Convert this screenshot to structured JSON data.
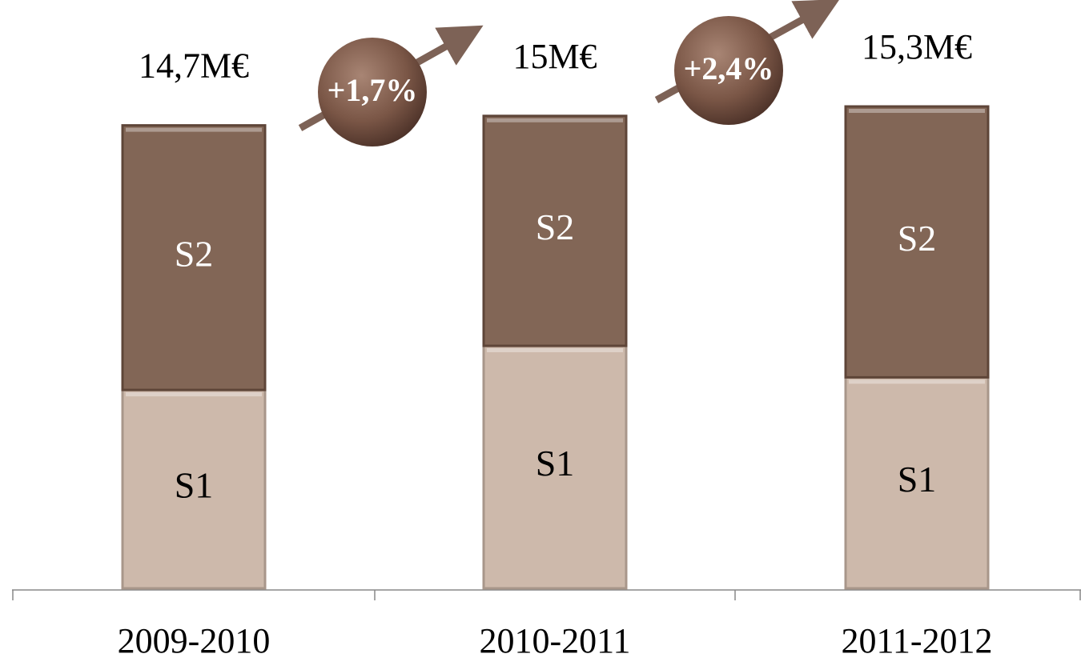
{
  "chart_data": {
    "type": "bar",
    "stacked": true,
    "categories": [
      "2009-2010",
      "2010-2011",
      "2011-2012"
    ],
    "series": [
      {
        "name": "S1",
        "color": "#cdb9ab",
        "values": [
          6.3,
          7.7,
          6.7
        ]
      },
      {
        "name": "S2",
        "color": "#826656",
        "values": [
          8.4,
          7.3,
          8.6
        ]
      }
    ],
    "totals": {
      "values": [
        14.7,
        15,
        15.3
      ],
      "value_labels": [
        "14,7M€",
        "15M€",
        "15,3M€"
      ]
    },
    "growth": {
      "values": [
        1.7,
        2.4
      ],
      "value_labels": [
        "+1,7%",
        "+2,4%"
      ]
    }
  }
}
